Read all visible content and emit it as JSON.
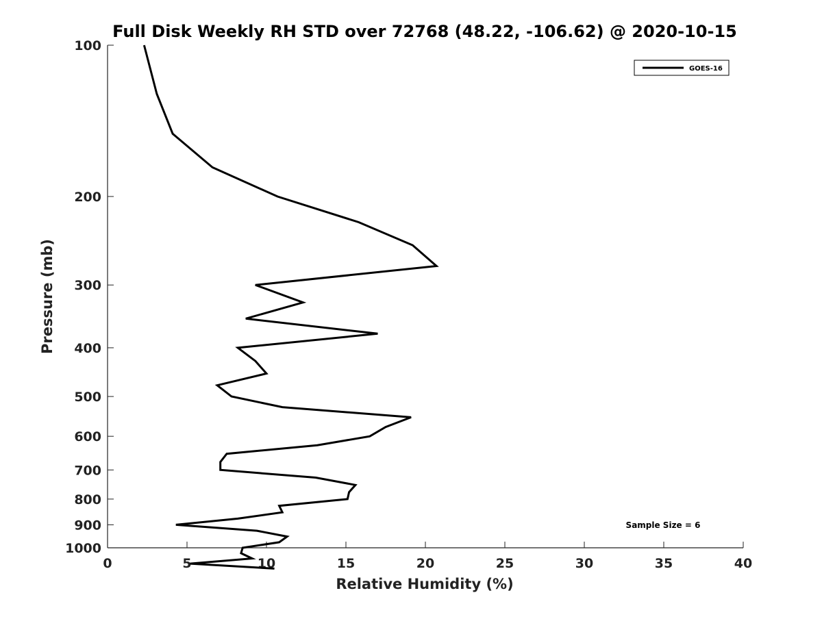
{
  "chart_data": {
    "type": "line",
    "title": "Full Disk Weekly RH STD over 72768 (48.22, -106.62) @ 2020-10-15",
    "xlabel": "Relative Humidity (%)",
    "ylabel": "Pressure (mb)",
    "xlim": [
      0,
      40
    ],
    "ylim": [
      100,
      1000
    ],
    "y_scale": "log",
    "y_reversed": true,
    "x_ticks": [
      "0",
      "5",
      "10",
      "15",
      "20",
      "25",
      "30",
      "35",
      "40"
    ],
    "y_ticks": [
      "100",
      "200",
      "300",
      "400",
      "500",
      "600",
      "700",
      "800",
      "900",
      "1000"
    ],
    "grid": false,
    "legend_position": "top-right",
    "annotation": "Sample Size = 6",
    "series": [
      {
        "name": "GOES-16",
        "color": "#000000",
        "points": [
          [
            2.3,
            100
          ],
          [
            3.1,
            125
          ],
          [
            4.1,
            150
          ],
          [
            6.6,
            175
          ],
          [
            10.7,
            200
          ],
          [
            15.8,
            225
          ],
          [
            19.2,
            250
          ],
          [
            20.7,
            275
          ],
          [
            9.3,
            300
          ],
          [
            12.3,
            325
          ],
          [
            8.7,
            350
          ],
          [
            17.0,
            375
          ],
          [
            8.2,
            400
          ],
          [
            9.3,
            425
          ],
          [
            10.0,
            450
          ],
          [
            6.9,
            475
          ],
          [
            7.8,
            500
          ],
          [
            11.0,
            525
          ],
          [
            19.1,
            550
          ],
          [
            17.5,
            575
          ],
          [
            16.5,
            600
          ],
          [
            13.2,
            625
          ],
          [
            7.5,
            650
          ],
          [
            7.1,
            675
          ],
          [
            7.1,
            700
          ],
          [
            13.1,
            725
          ],
          [
            15.6,
            750
          ],
          [
            15.2,
            775
          ],
          [
            15.1,
            800
          ],
          [
            10.8,
            825
          ],
          [
            11.0,
            850
          ],
          [
            8.2,
            875
          ],
          [
            4.3,
            900
          ],
          [
            9.4,
            925
          ],
          [
            11.3,
            950
          ],
          [
            10.8,
            975
          ],
          [
            8.5,
            1000
          ],
          [
            8.4,
            1025
          ],
          [
            9.1,
            1050
          ],
          [
            5.2,
            1075
          ],
          [
            10.5,
            1100
          ]
        ]
      }
    ]
  }
}
